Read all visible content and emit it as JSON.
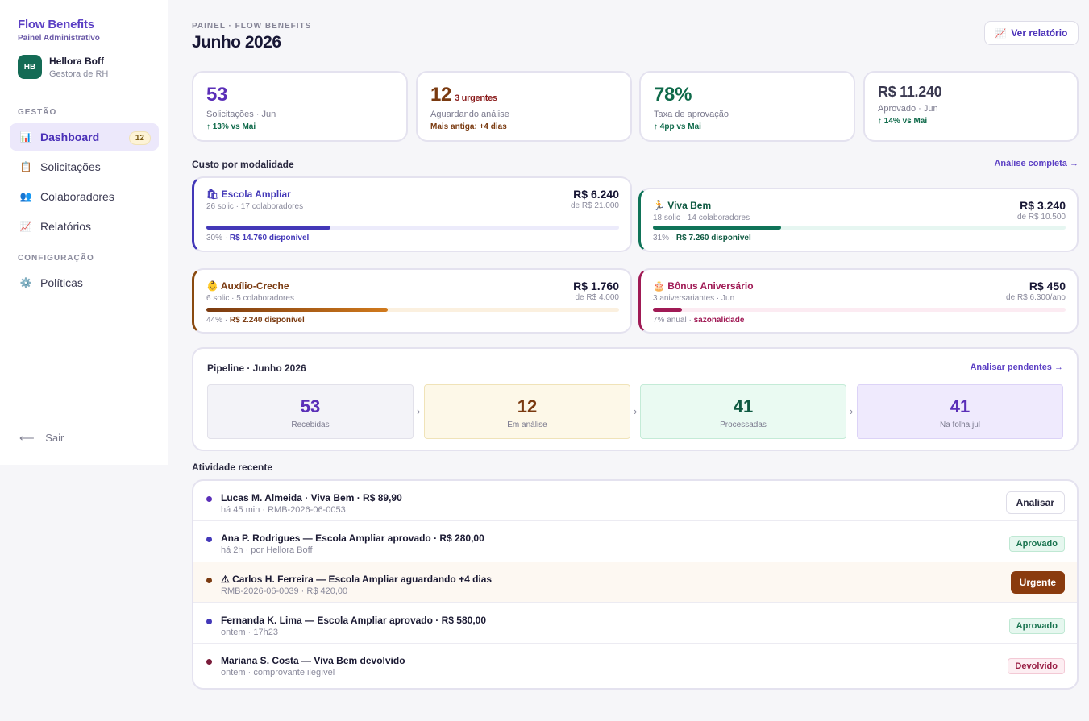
{
  "sidebar": {
    "brand": "Flow Benefits",
    "subtitle": "Painel Administrativo",
    "user": {
      "initials": "HB",
      "name": "Hellora Boff",
      "role": "Gestora de RH"
    },
    "sections": {
      "gestao": "GESTÃO",
      "config": "CONFIGURAÇÃO"
    },
    "items": [
      {
        "label": "Dashboard",
        "icon": "chart-icon",
        "badge": "12"
      },
      {
        "label": "Solicitações",
        "icon": "clipboard-icon"
      },
      {
        "label": "Colaboradores",
        "icon": "people-icon"
      },
      {
        "label": "Relatórios",
        "icon": "trend-icon"
      },
      {
        "label": "Políticas",
        "icon": "gear-icon"
      }
    ],
    "logout": "Sair"
  },
  "header": {
    "breadcrumb": "PAINEL · FLOW BENEFITS",
    "title": "Junho 2026",
    "report_button": "Ver relatório"
  },
  "kpis": [
    {
      "value": "53",
      "label": "Solicitações · Jun",
      "delta": "↑ 13% vs Mai",
      "color": "#5b2fb8"
    },
    {
      "value": "12",
      "extra": "3 urgentes",
      "label": "Aguardando análise",
      "delta": "Mais antiga: +4 dias",
      "color": "#7a3a10"
    },
    {
      "value": "78%",
      "label": "Taxa de aprovação",
      "delta": "↑ 4pp vs Mai",
      "color": "#0f6a4a"
    },
    {
      "value": "R$ 11.240",
      "label": "Aprovado · Jun",
      "delta": "↑ 14% vs Mai",
      "color": "#3a3950"
    }
  ],
  "modalidades": {
    "title": "Custo por modalidade",
    "link": "Análise completa →",
    "items": [
      {
        "icon": "🛍",
        "name": "Escola Ampliar",
        "meta": "26 solic · 17 colaboradores",
        "amount": "R$ 6.240",
        "of": "de R$ 21.000",
        "progress": 0.3,
        "pct": "30% · ",
        "avail": "R$ 14.760 disponível",
        "color": "#4338b8",
        "track": "#ecebfb"
      },
      {
        "icon": "🏃",
        "name": "Viva Bem",
        "meta": "18 solic · 14 colaboradores",
        "amount": "R$ 3.240",
        "of": "de R$ 10.500",
        "progress": 0.31,
        "pct": "31% · ",
        "avail": "R$ 7.260 disponível",
        "color": "#0f7358",
        "track": "#e6f6f1"
      },
      {
        "icon": "👶",
        "name": "Auxílio-Creche",
        "meta": "6 solic · 5 colaboradores",
        "amount": "R$ 1.760",
        "of": "de R$ 4.000",
        "progress": 0.44,
        "pct": "44% · ",
        "avail": "R$ 2.240 disponível",
        "color": "#8a4a10",
        "track": "#fbf0df"
      },
      {
        "icon": "🎂",
        "name": "Bônus Aniversário",
        "meta": "3 aniversariantes · Jun",
        "amount": "R$ 450",
        "of": "de R$ 6.300/ano",
        "progress": 0.07,
        "pct": "7% anual · ",
        "avail": "sazonalidade",
        "color": "#a01a55",
        "track": "#fcebf2"
      }
    ]
  },
  "pipeline": {
    "title": "Pipeline · Junho 2026",
    "link": "Analisar pendentes →",
    "stages": [
      {
        "value": "53",
        "label": "Recebidas",
        "color": "#5b2fb8",
        "bg": "#f3f3f8",
        "border": "#e2e1ea"
      },
      {
        "value": "12",
        "label": "Em análise",
        "color": "#7a3a10",
        "bg": "#fdf8e8",
        "border": "#f0e3b8"
      },
      {
        "value": "41",
        "label": "Processadas",
        "color": "#0f5a42",
        "bg": "#eafaf2",
        "border": "#c4ebd7"
      },
      {
        "value": "41",
        "label": "Na folha jul",
        "color": "#5b2fb8",
        "bg": "#efeafd",
        "border": "#dcd3f7"
      }
    ]
  },
  "activity": {
    "title": "Atividade recente",
    "rows": [
      {
        "title": "Lucas M. Almeida · Viva Bem · R$ 89,90",
        "sub": "há 45 min · RMB-2026-06-0053",
        "action": "Analisar",
        "type": "button",
        "dot": "#5b2fb8"
      },
      {
        "title": "Ana P. Rodrigues — Escola Ampliar aprovado · R$ 280,00",
        "sub": "há 2h · por Hellora Boff",
        "action": "Aprovado",
        "type": "ok",
        "dot": "#4338b8"
      },
      {
        "title": "⚠ Carlos H. Ferreira — Escola Ampliar aguardando +4 dias",
        "sub": "RMB-2026-06-0039 · R$ 420,00",
        "action": "Urgente",
        "type": "urgent",
        "dot": "#7a3a10"
      },
      {
        "title": "Fernanda K. Lima — Escola Ampliar aprovado · R$ 580,00",
        "sub": "ontem · 17h23",
        "action": "Aprovado",
        "type": "ok",
        "dot": "#4338b8"
      },
      {
        "title": "Mariana S. Costa — Viva Bem devolvido",
        "sub": "ontem · comprovante ilegível",
        "action": "Devolvido",
        "type": "dev",
        "dot": "#7a1c3a"
      }
    ]
  }
}
